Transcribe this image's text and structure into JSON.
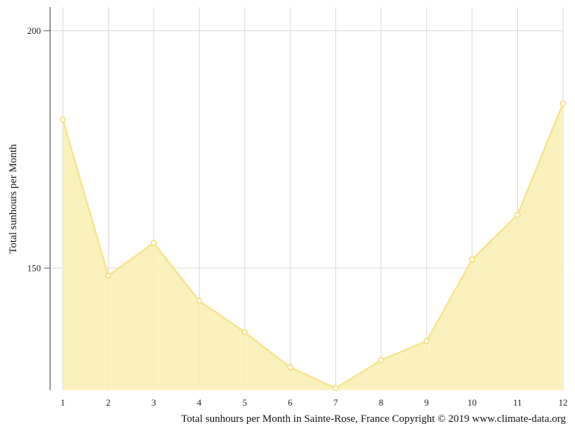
{
  "chart_data": {
    "type": "area",
    "title": "",
    "xlabel": "",
    "ylabel": "Total sunhours per Month",
    "caption": "Total sunhours per Month in Sainte-Rose, France Copyright © 2019 www.climate-data.org",
    "x": [
      1,
      2,
      3,
      4,
      5,
      6,
      7,
      8,
      9,
      10,
      11,
      12
    ],
    "x_tick_labels": [
      "1",
      "2",
      "3",
      "4",
      "5",
      "6",
      "7",
      "8",
      "9",
      "10",
      "11",
      "12"
    ],
    "y_ticks": [
      150,
      200
    ],
    "y_tick_labels": [
      "150",
      "200"
    ],
    "ylim": [
      124.3,
      205
    ],
    "grid": true,
    "series": [
      {
        "values": [
          181.3,
          148.4,
          155.3,
          143.1,
          136.5,
          129.1,
          124.7,
          130.6,
          134.6,
          151.8,
          161.2,
          184.7
        ]
      }
    ],
    "colors": {
      "fill": "#f9eeb2",
      "line": "#f7e38c",
      "marker_stroke": "#f3d65a",
      "grid": "#d6d6d6",
      "axis": "#555555"
    }
  }
}
